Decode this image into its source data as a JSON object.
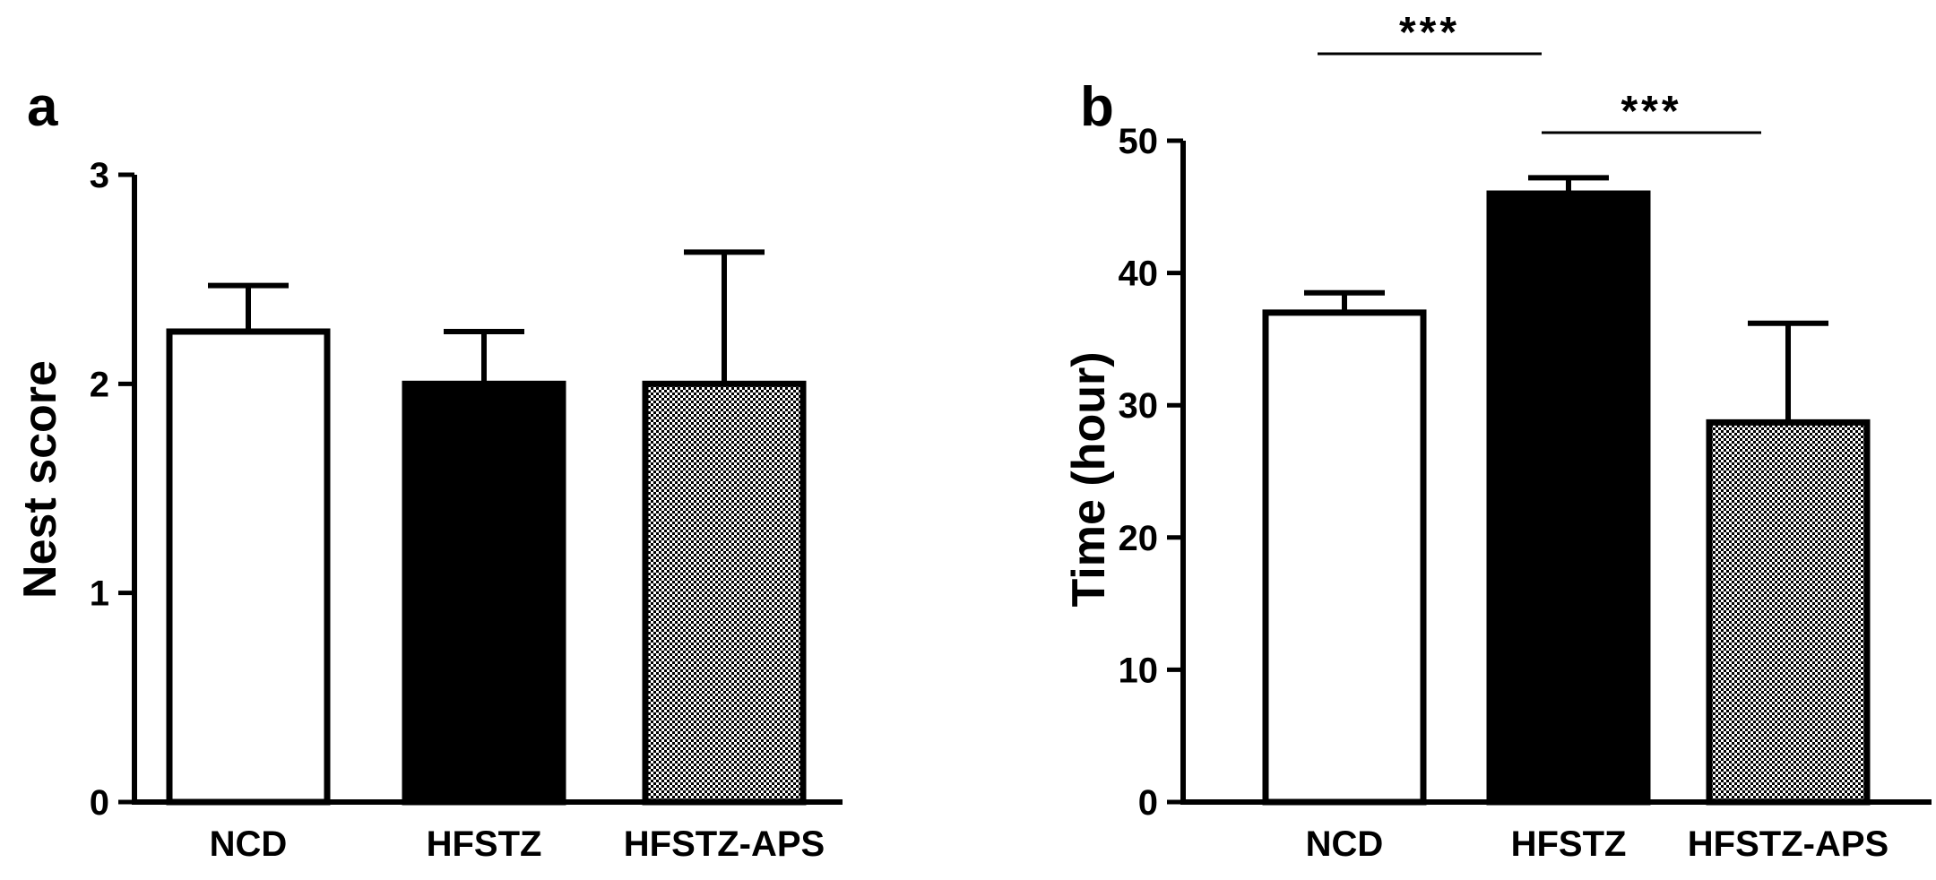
{
  "chart_data": [
    {
      "type": "bar",
      "panel_label": "a",
      "categories": [
        "NCD",
        "HFSTZ",
        "HFSTZ-APS"
      ],
      "values": [
        2.25,
        2.0,
        2.0
      ],
      "errors": [
        0.22,
        0.25,
        0.63
      ],
      "fills": [
        "white",
        "black",
        "checker"
      ],
      "xlabel": "",
      "ylabel": "Nest score",
      "ylim": [
        0,
        3
      ],
      "yticks": [
        "0",
        "1",
        "2",
        "3"
      ],
      "annotations": []
    },
    {
      "type": "bar",
      "panel_label": "b",
      "categories": [
        "NCD",
        "HFSTZ",
        "HFSTZ-APS"
      ],
      "values": [
        37,
        46,
        28.7
      ],
      "errors": [
        1.5,
        1.2,
        7.5
      ],
      "fills": [
        "white",
        "black",
        "checker"
      ],
      "xlabel": "",
      "ylabel": "Time (hour)",
      "ylim": [
        0,
        50
      ],
      "yticks": [
        "0",
        "10",
        "20",
        "30",
        "40",
        "50"
      ],
      "annotations": [
        {
          "text": "***",
          "from": "NCD",
          "to": "HFSTZ"
        },
        {
          "text": "***",
          "from": "HFSTZ",
          "to": "HFSTZ-APS"
        }
      ]
    }
  ],
  "colors": {
    "ink": "#000000",
    "background": "#ffffff"
  }
}
